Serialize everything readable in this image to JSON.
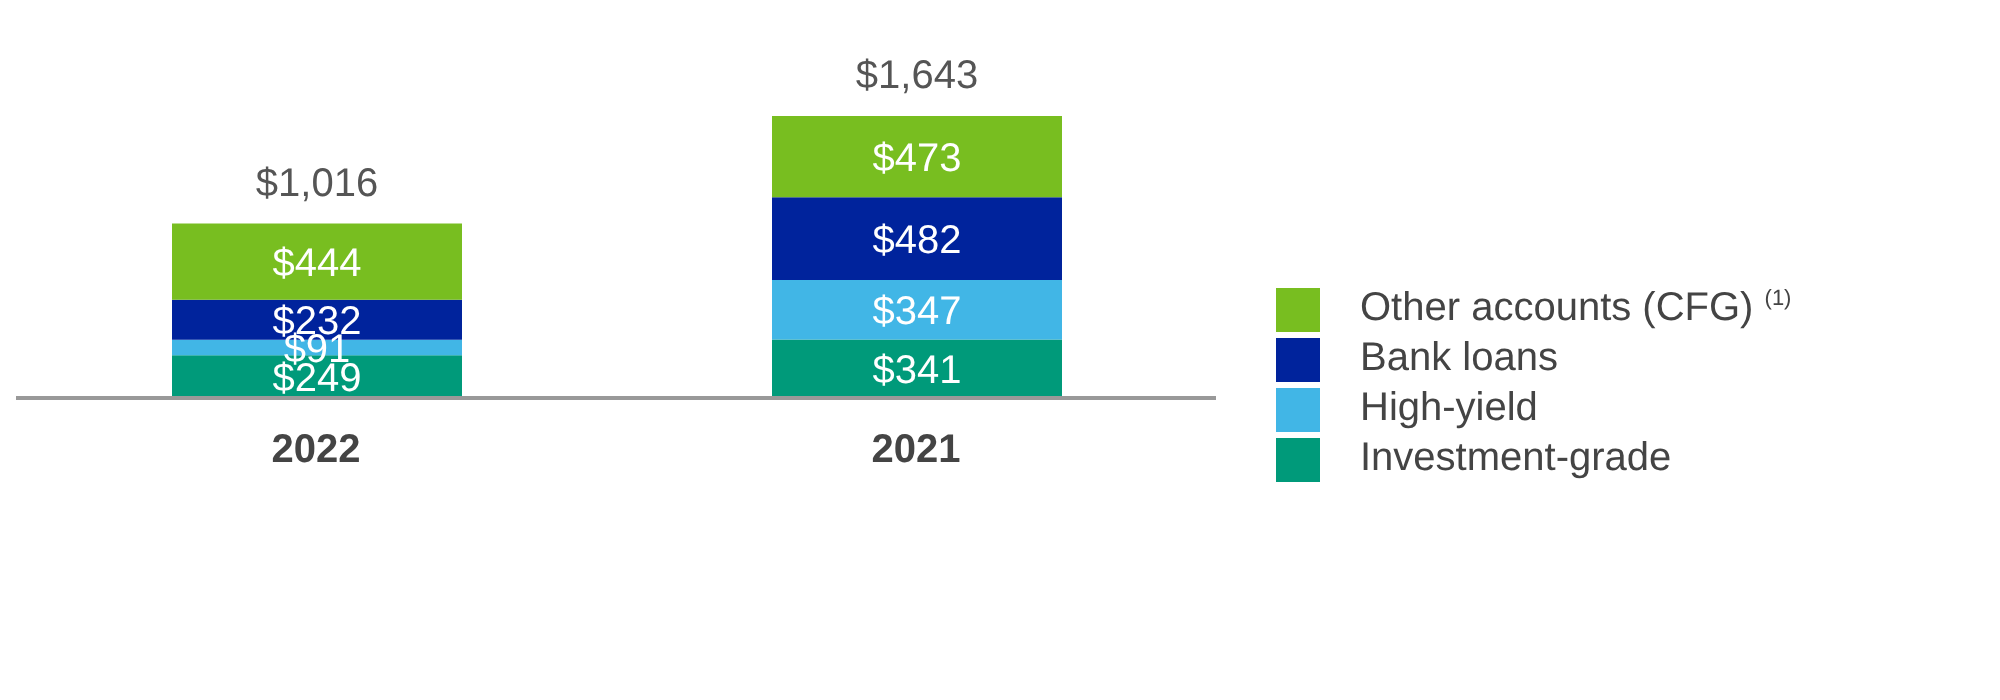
{
  "chart_data": {
    "type": "bar",
    "stacked": true,
    "categories": [
      "2022",
      "2021"
    ],
    "series": [
      {
        "name": "Investment-grade",
        "color": "#009a7a",
        "values": [
          249,
          341
        ],
        "value_labels": [
          "$249",
          "$341"
        ]
      },
      {
        "name": "High-yield",
        "color": "#41b6e6",
        "values": [
          91,
          347
        ],
        "value_labels": [
          "$91",
          "$347"
        ]
      },
      {
        "name": "Bank loans",
        "color": "#00239c",
        "values": [
          232,
          482
        ],
        "value_labels": [
          "$232",
          "$482"
        ]
      },
      {
        "name": "Other accounts (CFG) $^{(1)}$",
        "color": "#78be20",
        "values": [
          444,
          473
        ],
        "value_labels": [
          "$444",
          "$473"
        ]
      }
    ],
    "totals": [
      "$1,016",
      "$1,643"
    ],
    "legend": "right",
    "grid": false
  }
}
